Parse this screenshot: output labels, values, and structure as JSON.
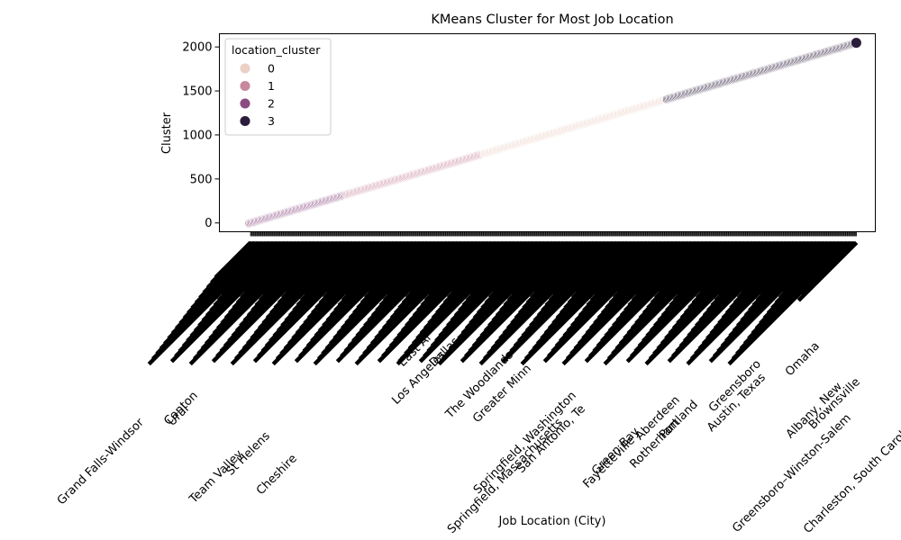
{
  "chart_data": {
    "type": "scatter",
    "title": "KMeans Cluster for Most Job Location",
    "xlabel": "Job Location (City)",
    "ylabel": "Cluster",
    "ylim": [
      -100,
      2150
    ],
    "yticks": [
      0,
      500,
      1000,
      1500,
      2000
    ],
    "grid": false,
    "legend": {
      "title": "location_cluster",
      "placement": "top-left",
      "entries": [
        {
          "label": "0",
          "color": "#ecd0c5"
        },
        {
          "label": "1",
          "color": "#c7879e"
        },
        {
          "label": "2",
          "color": "#8a4b80"
        },
        {
          "label": "3",
          "color": "#2c1c3b"
        }
      ]
    },
    "series": [
      {
        "name": "2",
        "x_range": [
          0,
          330
        ],
        "color": "#8a4b80"
      },
      {
        "name": "1",
        "x_range": [
          331,
          790
        ],
        "color": "#c7879e"
      },
      {
        "name": "0",
        "x_range": [
          791,
          1410
        ],
        "color": "#ecd0c5"
      },
      {
        "name": "3",
        "x_range": [
          1411,
          2049
        ],
        "color": "#2c1c3b"
      }
    ],
    "x_count": 2050,
    "x_note": "Each city is an x category; y value equals category index (0..2049).",
    "readable_tick_labels": [
      "Grand Falls-Windsor",
      "Ural",
      "Canton",
      "St Helens",
      "Team Valley",
      "Cheshire",
      "East Ar",
      "Los Angeles",
      "Dallas",
      "The Woodlands",
      "Greater Minn",
      "Springfield, Massachusetts",
      "Springfield, Washington",
      "San Antonio, Te",
      "Fayetteville",
      "Green Bay",
      "Aberdeen",
      "Rotherham",
      "Portland",
      "Austin, Texas",
      "Greensboro",
      "Omaha",
      "Albany, New",
      "Greensboro–Winston-Salem",
      "Brownsville",
      "Charleston, South Carolina",
      "East"
    ]
  }
}
